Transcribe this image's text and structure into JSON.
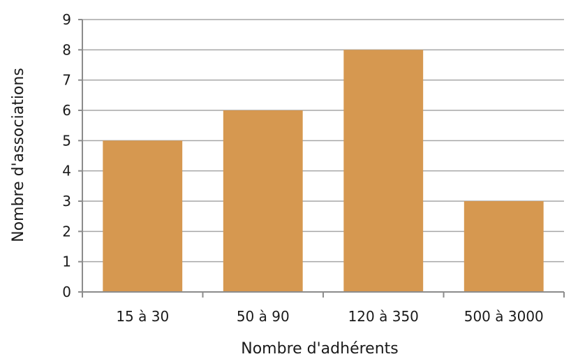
{
  "chart_data": {
    "type": "bar",
    "categories": [
      "15 à 30",
      "50 à 90",
      "120 à 350",
      "500 à 3000"
    ],
    "values": [
      5,
      6,
      8,
      3
    ],
    "xlabel": "Nombre d'adhérents",
    "ylabel": "Nombre d'associations",
    "ylim": [
      0,
      9
    ],
    "yticks": [
      0,
      1,
      2,
      3,
      4,
      5,
      6,
      7,
      8,
      9
    ],
    "grid": true,
    "legend": "none",
    "bar_color": "#D69850"
  }
}
